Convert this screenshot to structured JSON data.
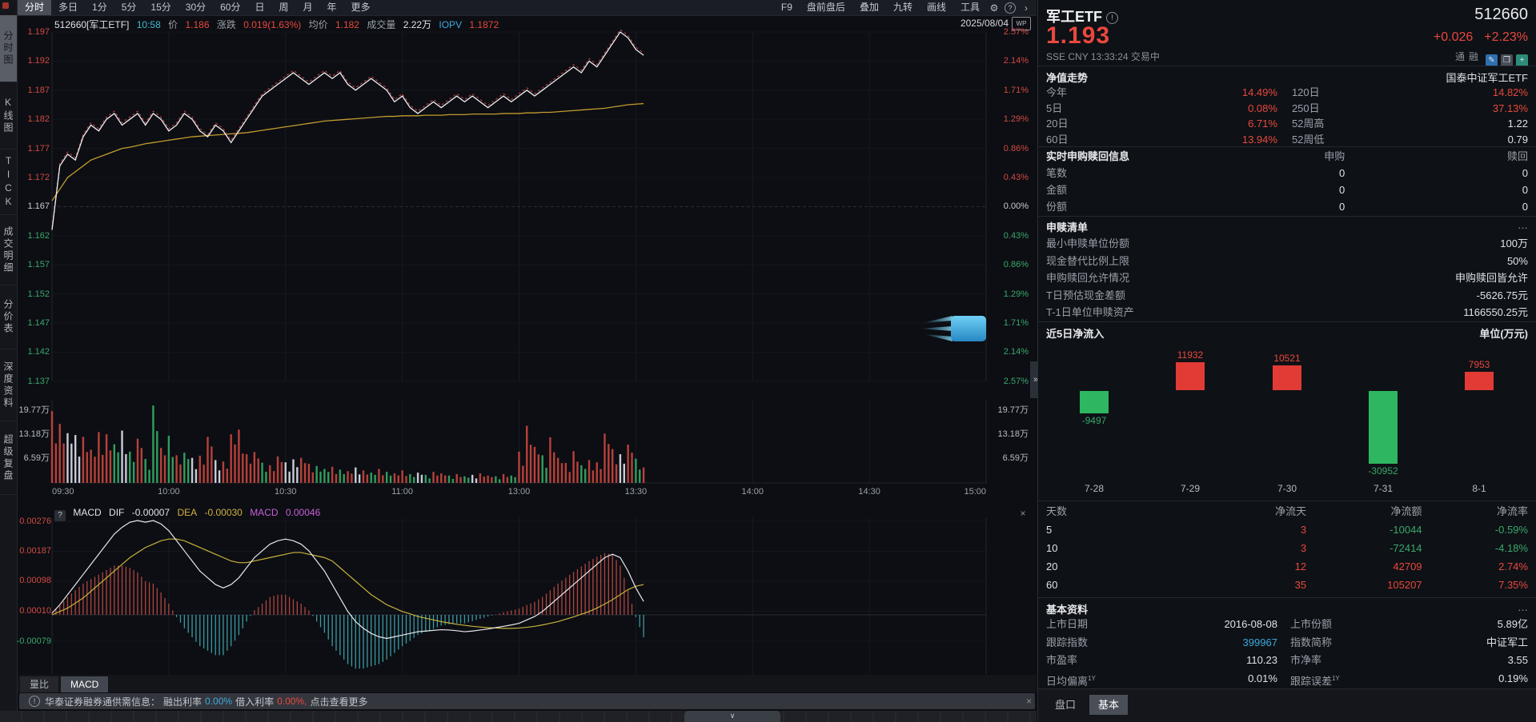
{
  "colors": {
    "accent_red": "#e8483f",
    "accent_green": "#2eb760",
    "cyan": "#3fa9e0",
    "avg_line": "#c39b2e",
    "price_line": "#f0f0f2",
    "hist_red": "#b04540",
    "hist_cyan": "#3a9aa3",
    "vol_red": "#b8413a",
    "vol_green": "#2f9e5f",
    "vol_white": "#c8ccd4"
  },
  "top_menu": {
    "left_items": [
      "分时",
      "多日",
      "1分",
      "5分",
      "15分",
      "30分",
      "60分",
      "日",
      "周",
      "月",
      "年",
      "更多"
    ],
    "selected": "分时",
    "right_items": [
      "F9",
      "盘前盘后",
      "叠加",
      "九转",
      "画线",
      "工具"
    ],
    "gear_icon": "⚙",
    "help_icon": "?",
    "expand_icon": "›"
  },
  "sidebar": {
    "items": [
      "分时图",
      "K线图",
      "TICK",
      "成交明细",
      "分价表",
      "深度资料",
      "超级复盘"
    ],
    "selected": "分时图"
  },
  "chart_header": {
    "code_name": "512660[军工ETF]",
    "time": "10:58",
    "price_label": "价",
    "price": "1.186",
    "change_label": "涨跌",
    "change": "0.019(1.63%)",
    "avg_label": "均价",
    "avg": "1.182",
    "volume_label": "成交量",
    "volume": "2.22万",
    "iopv_label": "IOPV",
    "iopv": "1.1872",
    "date": "2025/08/04",
    "wp_icon": "WP"
  },
  "axes": {
    "price_labels": [
      "1.197",
      "1.192",
      "1.187",
      "1.182",
      "1.177",
      "1.172",
      "1.167",
      "1.162",
      "1.157",
      "1.152",
      "1.147",
      "1.142",
      "1.137"
    ],
    "pct_labels": [
      "2.57%",
      "2.14%",
      "1.71%",
      "1.29%",
      "0.86%",
      "0.43%",
      "0.00%",
      "0.43%",
      "0.86%",
      "1.29%",
      "1.71%",
      "2.14%",
      "2.57%"
    ],
    "volume_labels": [
      "19.77万",
      "13.18万",
      "6.59万"
    ],
    "time_labels": [
      "09:30",
      "10:00",
      "10:30",
      "11:00",
      "13:00",
      "13:30",
      "14:00",
      "14:30",
      "15:00"
    ]
  },
  "macd_header": {
    "help": "?",
    "prefix": "MACD",
    "dif_label": "DIF",
    "dif": "-0.00007",
    "dea_label": "DEA",
    "dea": "-0.00030",
    "macd_label": "MACD",
    "macd": "0.00046",
    "axis_labels": [
      "0.00276",
      "0.00187",
      "0.00098",
      "0.00010",
      "-0.00079"
    ],
    "close_icon": "×"
  },
  "sub_tabs": {
    "items": [
      "量比",
      "MACD"
    ],
    "selected": "MACD"
  },
  "notice_bar": {
    "icon": "!",
    "prefix": "华泰证券融券通供需信息：",
    "out_label": "融出利率",
    "out_rate": "0.00%",
    "in_label": "借入利率",
    "in_rate": "0.00%,",
    "more": "点击查看更多",
    "close_icon": "×"
  },
  "bottom_strip": {
    "collapse_icon": "∨"
  },
  "panel_collapse_icon": "»",
  "quote_panel": {
    "name": "军工ETF",
    "info_icon": "!",
    "code": "512660",
    "price": "1.193",
    "change": "+0.026",
    "change_pct": "+2.23%",
    "exchange": "SSE",
    "currency": "CNY",
    "time": "13:33:24",
    "status": "交易中",
    "badges": [
      "通",
      "融"
    ],
    "tool_icons": [
      {
        "name": "pencil-icon",
        "glyph": "✎",
        "bg": "#2f6fb0"
      },
      {
        "name": "overlay-icon",
        "glyph": "❐",
        "bg": "#4a4e58"
      },
      {
        "name": "add-icon",
        "glyph": "+",
        "bg": "#2e8b7a"
      }
    ],
    "nav": {
      "title": "净值走势",
      "fund_name": "国泰中证军工ETF",
      "rows": [
        {
          "l1": "今年",
          "v1": "14.49%",
          "c1": "red",
          "l2": "120日",
          "v2": "14.82%",
          "c2": "red"
        },
        {
          "l1": "5日",
          "v1": "0.08%",
          "c1": "red",
          "l2": "250日",
          "v2": "37.13%",
          "c2": "red"
        },
        {
          "l1": "20日",
          "v1": "6.71%",
          "c1": "red",
          "l2": "52周高",
          "v2": "1.22",
          "c2": "white"
        },
        {
          "l1": "60日",
          "v1": "13.94%",
          "c1": "red",
          "l2": "52周低",
          "v2": "0.79",
          "c2": "white"
        }
      ]
    },
    "realtime": {
      "title": "实时申购赎回信息",
      "col1": "申购",
      "col2": "赎回",
      "rows": [
        {
          "label": "笔数",
          "v1": "0",
          "v2": "0"
        },
        {
          "label": "金额",
          "v1": "0",
          "v2": "0"
        },
        {
          "label": "份额",
          "v1": "0",
          "v2": "0"
        }
      ]
    },
    "redemption": {
      "title": "申赎清单",
      "more": "…",
      "rows": [
        {
          "label": "最小申赎单位份额",
          "value": "100万"
        },
        {
          "label": "现金替代比例上限",
          "value": "50%"
        },
        {
          "label": "申购赎回允许情况",
          "value": "申购赎回皆允许"
        },
        {
          "label": "T日预估现金差额",
          "value": "-5626.75元"
        },
        {
          "label": "T-1日单位申赎资产",
          "value": "1166550.25元"
        }
      ]
    },
    "flows": {
      "title": "近5日净流入",
      "unit": "单位(万元)"
    },
    "flow_table": {
      "headers": [
        "天数",
        "净流天",
        "净流额",
        "净流率"
      ],
      "rows": [
        {
          "days": "5",
          "net_days": "3",
          "amount": "-10044",
          "rate": "-0.59%"
        },
        {
          "days": "10",
          "net_days": "3",
          "amount": "-72414",
          "rate": "-4.18%"
        },
        {
          "days": "20",
          "net_days": "12",
          "amount": "42709",
          "rate": "2.74%"
        },
        {
          "days": "60",
          "net_days": "35",
          "amount": "105207",
          "rate": "7.35%"
        }
      ]
    },
    "basics": {
      "title": "基本资料",
      "more": "…",
      "rows": [
        {
          "l1": "上市日期",
          "s1": "",
          "v1": "2016-08-08",
          "c1": "white",
          "l2": "上市份额",
          "s2": "",
          "v2": "5.89亿"
        },
        {
          "l1": "跟踪指数",
          "s1": "",
          "v1": "399967",
          "c1": "cyan",
          "l2": "指数简称",
          "s2": "",
          "v2": "中证军工"
        },
        {
          "l1": "市盈率",
          "s1": "",
          "v1": "110.23",
          "c1": "white",
          "l2": "市净率",
          "s2": "",
          "v2": "3.55"
        },
        {
          "l1": "日均偏离",
          "s1": "1Y",
          "v1": "0.01%",
          "c1": "white",
          "l2": "跟踪误差",
          "s2": "1Y",
          "v2": "0.19%"
        }
      ]
    },
    "bottom_tabs": {
      "items": [
        "盘口",
        "基本"
      ],
      "selected": "基本"
    }
  },
  "chart_data": [
    {
      "type": "line",
      "title": "512660 军工ETF 分时走势 2025/08/04",
      "x_desc": "A股交易分钟(午休折叠), 采样间隔2分钟, 当前至13:33",
      "session_minutes": 240,
      "last_minute": 152,
      "prev_close": 1.167,
      "price_ylim": [
        1.137,
        1.197
      ],
      "pct_ylim": [
        -2.57,
        2.57
      ],
      "time_ticks": [
        "09:30",
        "10:00",
        "10:30",
        "11:00",
        "13:00",
        "13:30",
        "14:00",
        "14:30",
        "15:00"
      ],
      "price": [
        1.163,
        1.174,
        1.176,
        1.175,
        1.179,
        1.181,
        1.18,
        1.182,
        1.183,
        1.181,
        1.182,
        1.183,
        1.181,
        1.183,
        1.182,
        1.18,
        1.181,
        1.183,
        1.182,
        1.18,
        1.179,
        1.181,
        1.18,
        1.178,
        1.18,
        1.182,
        1.184,
        1.186,
        1.187,
        1.188,
        1.189,
        1.19,
        1.189,
        1.188,
        1.189,
        1.19,
        1.189,
        1.19,
        1.188,
        1.187,
        1.188,
        1.189,
        1.188,
        1.187,
        1.185,
        1.186,
        1.184,
        1.183,
        1.184,
        1.185,
        1.184,
        1.185,
        1.186,
        1.185,
        1.186,
        1.185,
        1.184,
        1.185,
        1.186,
        1.185,
        1.186,
        1.187,
        1.186,
        1.187,
        1.188,
        1.189,
        1.19,
        1.191,
        1.19,
        1.192,
        1.191,
        1.193,
        1.195,
        1.197,
        1.196,
        1.194,
        1.193
      ],
      "avg": [
        1.168,
        1.17,
        1.172,
        1.173,
        1.174,
        1.175,
        1.1755,
        1.176,
        1.1765,
        1.177,
        1.1772,
        1.1775,
        1.1778,
        1.178,
        1.1782,
        1.1784,
        1.1786,
        1.1788,
        1.179,
        1.1791,
        1.1792,
        1.1793,
        1.1794,
        1.1795,
        1.1796,
        1.1797,
        1.1799,
        1.1801,
        1.1803,
        1.1805,
        1.1807,
        1.1809,
        1.1811,
        1.1813,
        1.1815,
        1.1817,
        1.1818,
        1.1819,
        1.182,
        1.1821,
        1.1822,
        1.1823,
        1.1824,
        1.1825,
        1.1825,
        1.1826,
        1.1826,
        1.1826,
        1.1827,
        1.1827,
        1.1827,
        1.1828,
        1.1828,
        1.1828,
        1.1829,
        1.1829,
        1.1829,
        1.1829,
        1.183,
        1.183,
        1.183,
        1.1831,
        1.1831,
        1.1832,
        1.1832,
        1.1833,
        1.1834,
        1.1835,
        1.1836,
        1.1837,
        1.1838,
        1.1839,
        1.1841,
        1.1843,
        1.1845,
        1.1846,
        1.1847
      ],
      "volume_ylim_wan": [
        0,
        19.77
      ],
      "volume_wan": [
        19.5,
        16,
        13.5,
        13,
        12.5,
        9,
        13.8,
        13.2,
        10.5,
        14.2,
        8.5,
        12,
        6.5,
        21,
        9.5,
        12.8,
        7.5,
        8.2,
        6.8,
        7.4,
        12.5,
        6.2,
        5.8,
        13.2,
        14.5,
        7.8,
        8.4,
        5.5,
        4.8,
        7.2,
        5.6,
        6.4,
        6.8,
        5.2,
        4.6,
        3.8,
        4.4,
        3.6,
        3.2,
        4.2,
        3.4,
        2.8,
        3.8,
        3.0,
        2.6,
        3.4,
        2.4,
        2.8,
        2.2,
        3.0,
        2.6,
        2.0,
        2.4,
        1.8,
        2.2,
        2.6,
        2.0,
        1.8,
        2.4,
        2.0,
        8.5,
        15.5,
        9.8,
        7.5,
        12.4,
        6.8,
        5.4,
        8.6,
        4.8,
        6.2,
        5.6,
        13.4,
        9.2,
        7.8,
        10.4,
        6.6,
        4.2
      ],
      "volume_colors": "rrwwrrrrgwgrggrgrgwrrwrrrrrgrrwwrrggrgrwrgrgrrgwgrrgrgwrrgrgrrrgrrrrgrrrrwrgr",
      "macd_axis": [
        0.00276,
        0.00187,
        0.00098,
        0.0001,
        -0.00079
      ],
      "macd_dif": [
        5e-05,
        0.0003,
        0.0006,
        0.0009,
        0.0012,
        0.0015,
        0.0018,
        0.0021,
        0.0024,
        0.0026,
        0.00275,
        0.0028,
        0.00275,
        0.0028,
        0.0027,
        0.0025,
        0.0022,
        0.0019,
        0.0016,
        0.0013,
        0.0011,
        0.0009,
        0.0008,
        0.0009,
        0.0011,
        0.0014,
        0.0017,
        0.0019,
        0.0021,
        0.0022,
        0.00225,
        0.0022,
        0.0021,
        0.0019,
        0.0016,
        0.0013,
        0.0009,
        0.0005,
        0.0001,
        -0.0002,
        -0.0004,
        -0.00055,
        -0.00065,
        -0.0007,
        -0.00065,
        -0.0006,
        -0.00055,
        -0.0005,
        -0.00048,
        -0.00046,
        -0.00044,
        -0.00045,
        -0.00047,
        -0.0005,
        -0.00048,
        -0.00045,
        -0.00042,
        -0.00038,
        -0.00034,
        -0.0003,
        -0.00025,
        -0.00015,
        -5e-05,
        0.0001,
        0.0003,
        0.0005,
        0.0007,
        0.0009,
        0.0011,
        0.0013,
        0.0015,
        0.0017,
        0.0018,
        0.0017,
        0.0013,
        0.0008,
        0.0004
      ],
      "macd_dea": [
        0.0,
        0.0001,
        0.0002,
        0.00035,
        0.0005,
        0.0007,
        0.0009,
        0.0011,
        0.0013,
        0.0015,
        0.0017,
        0.00185,
        0.002,
        0.0021,
        0.0022,
        0.00225,
        0.00225,
        0.0022,
        0.0021,
        0.002,
        0.0019,
        0.0018,
        0.0017,
        0.0016,
        0.00155,
        0.00155,
        0.0016,
        0.00165,
        0.0017,
        0.00175,
        0.0018,
        0.00185,
        0.00185,
        0.0018,
        0.00175,
        0.0017,
        0.0016,
        0.0014,
        0.0012,
        0.001,
        0.0008,
        0.0006,
        0.00045,
        0.0003,
        0.0002,
        0.0001,
        3e-05,
        -5e-05,
        -0.0001,
        -0.00015,
        -0.0002,
        -0.00024,
        -0.00028,
        -0.00031,
        -0.00034,
        -0.00036,
        -0.00038,
        -0.00039,
        -0.0004,
        -0.0004,
        -0.00039,
        -0.00037,
        -0.00034,
        -0.0003,
        -0.00025,
        -0.0002,
        -0.00013,
        -6e-05,
        2e-05,
        0.0001,
        0.0002,
        0.00032,
        0.00045,
        0.0006,
        0.00075,
        0.00085,
        0.0009
      ]
    },
    {
      "type": "bar",
      "title": "近5日净流入",
      "ylabel": "万元",
      "categories": [
        "7-28",
        "7-29",
        "7-30",
        "7-31",
        "8-1"
      ],
      "values": [
        -9497,
        11932,
        10521,
        -30952,
        7953
      ]
    }
  ]
}
